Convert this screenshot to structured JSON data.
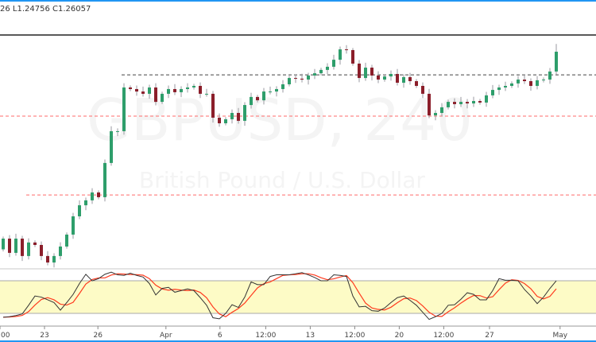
{
  "legend_text": "26 L1.24756 C1.26057",
  "watermark": {
    "symbol": "GBPUSD, 240",
    "description": "British Pound / U.S. Dollar"
  },
  "colors": {
    "up": "#2e9e6b",
    "down": "#8b1e2a",
    "wick": "#9a9aa0",
    "accent": "#2196f3",
    "k_line": "#333333",
    "d_line": "#ff3b1f",
    "band_fill": "#fdfbc6",
    "level_red": "#ff6b6b"
  },
  "chart_data": [
    {
      "type": "candlestick",
      "title": "GBPUSD, 240",
      "ylim": [
        1.1369,
        1.2864
      ],
      "first_open": 1.148,
      "close": [
        1.1541,
        1.146,
        1.1541,
        1.1442,
        1.1519,
        1.1505,
        1.1442,
        1.1405,
        1.1442,
        1.1496,
        1.1564,
        1.1668,
        1.1731,
        1.1759,
        1.1804,
        1.1777,
        1.1972,
        1.2153,
        1.2153,
        1.2402,
        1.2393,
        1.2379,
        1.2366,
        1.2402,
        1.232,
        1.2366,
        1.2393,
        1.2375,
        1.2393,
        1.2402,
        1.2411,
        1.2366,
        1.2366,
        1.223,
        1.2198,
        1.2221,
        1.2257,
        1.2212,
        1.2302,
        1.2348,
        1.2329,
        1.2379,
        1.2379,
        1.2393,
        1.242,
        1.2456,
        1.2452,
        1.2447,
        1.247,
        1.2483,
        1.2502,
        1.252,
        1.256,
        1.2619,
        1.2615,
        1.2538,
        1.2456,
        1.2515,
        1.247,
        1.2447,
        1.2465,
        1.2479,
        1.2429,
        1.2461,
        1.2438,
        1.2411,
        1.2366,
        1.2243,
        1.2257,
        1.2289,
        1.232,
        1.2307,
        1.232,
        1.2311,
        1.2325,
        1.2316,
        1.2357,
        1.2388,
        1.2402,
        1.2411,
        1.2425,
        1.2447,
        1.2438,
        1.2411,
        1.2443,
        1.2447,
        1.2493,
        1.26057
      ],
      "last_bar_low": 1.24756,
      "last_bar_high": 1.265,
      "levels": [
        {
          "price": 1.2701,
          "style": "solid",
          "color": "#222222"
        },
        {
          "price": 1.2474,
          "style": "dashed",
          "color": "#444444",
          "from_bar": 19
        },
        {
          "price": 1.2239,
          "style": "dashed",
          "color": "#ff6b6b"
        },
        {
          "price": 1.179,
          "style": "dashed",
          "color": "#ff6b6b",
          "from_bar": 4
        }
      ],
      "x_ticks": [
        {
          "label": "00",
          "bar": -0.5
        },
        {
          "label": "23",
          "bar": 6.5
        },
        {
          "label": "26",
          "bar": 14.9
        },
        {
          "label": "Apr",
          "bar": 25.6
        },
        {
          "label": "6",
          "bar": 34.1
        },
        {
          "label": "12:00",
          "bar": 41.3
        },
        {
          "label": "13",
          "bar": 48.3
        },
        {
          "label": "12:00",
          "bar": 55.3
        },
        {
          "label": "20",
          "bar": 62.3
        },
        {
          "label": "12:00",
          "bar": 69.3
        },
        {
          "label": "27",
          "bar": 76.5
        },
        {
          "label": "May",
          "bar": 87.6
        }
      ]
    },
    {
      "type": "line",
      "indicator": "stochastic",
      "ylim": [
        0,
        100
      ],
      "bands": [
        20,
        80
      ],
      "k": [
        13,
        14,
        16,
        19,
        35,
        52,
        50,
        45,
        40,
        26,
        40,
        55,
        75,
        92,
        80,
        84,
        92,
        96,
        91,
        90,
        94,
        90,
        87,
        75,
        54,
        66,
        68,
        59,
        62,
        65,
        62,
        49,
        35,
        12,
        10,
        20,
        36,
        31,
        50,
        78,
        73,
        73,
        88,
        91,
        91,
        91,
        93,
        95,
        91,
        86,
        80,
        80,
        91,
        90,
        88,
        52,
        32,
        33,
        25,
        24,
        30,
        40,
        49,
        52,
        44,
        35,
        22,
        9,
        14,
        20,
        35,
        36,
        46,
        58,
        55,
        45,
        45,
        62,
        84,
        81,
        81,
        80,
        64,
        52,
        38,
        50,
        66,
        80
      ]
    }
  ]
}
